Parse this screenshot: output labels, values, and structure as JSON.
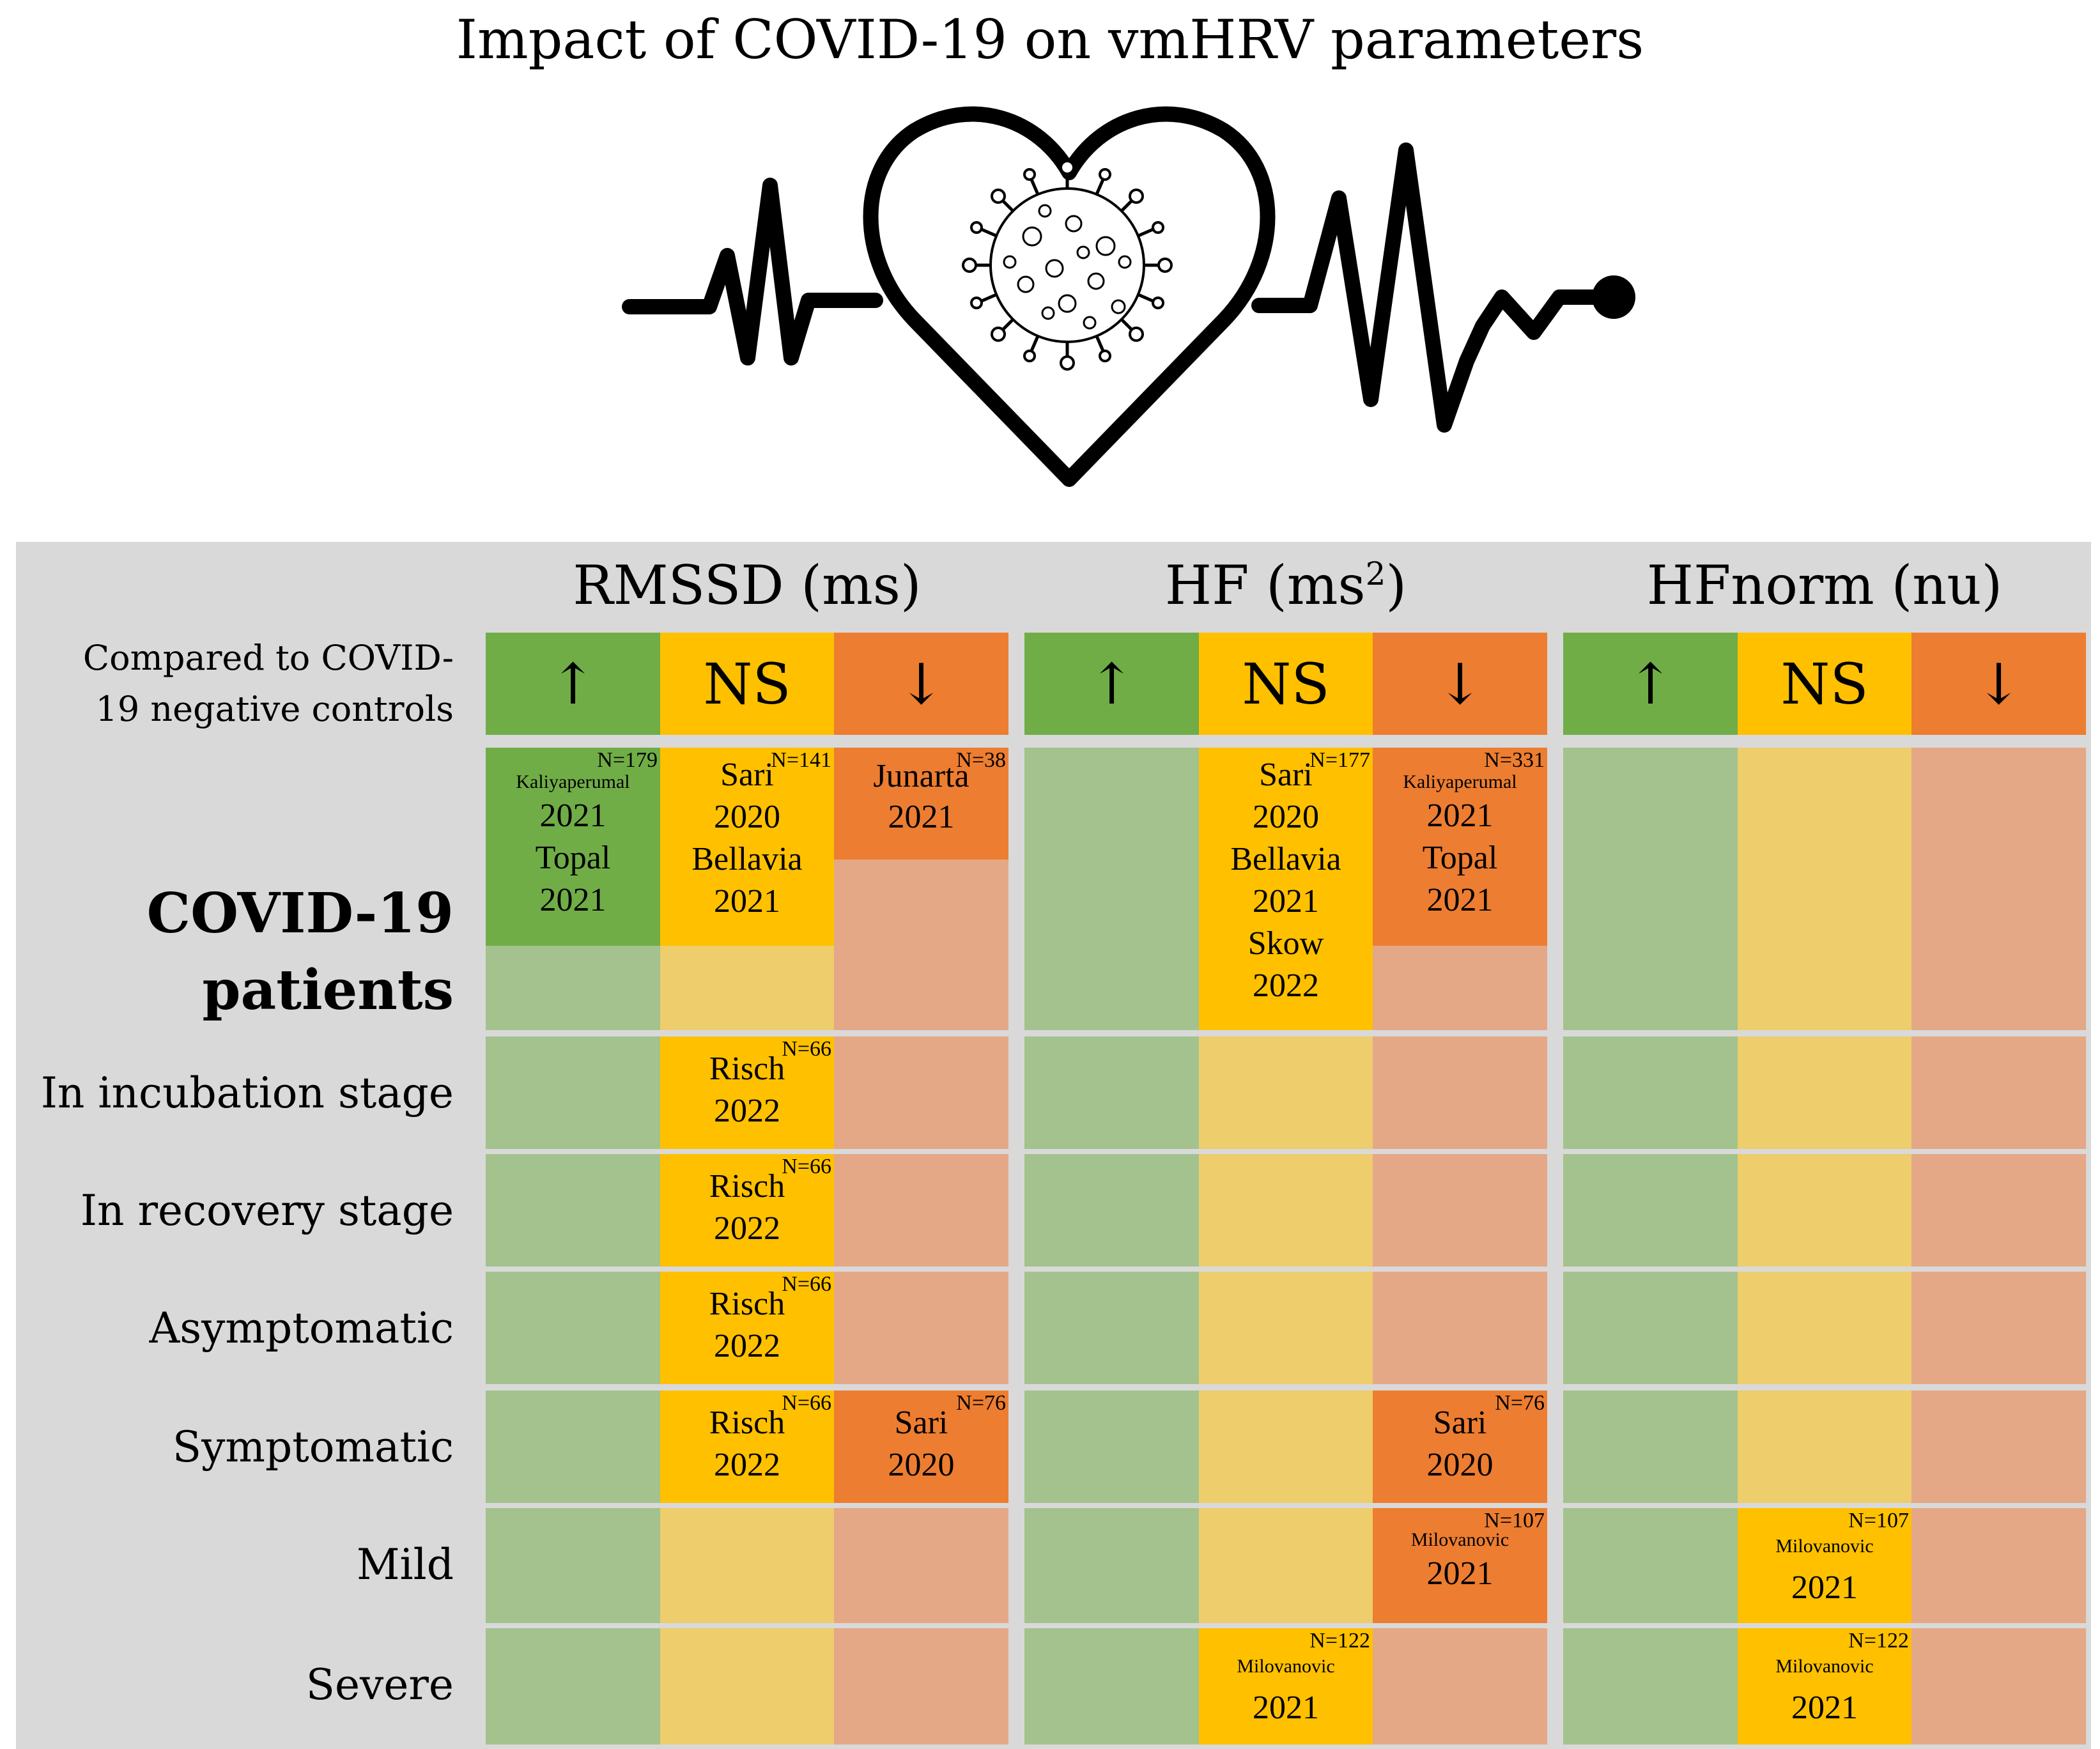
{
  "title": "Impact of COVID-19 on vmHRV parameters",
  "logo": {
    "icon": "heart-ecg-virus-icon"
  },
  "colors": {
    "increase": "#70ad47",
    "ns": "#ffc000",
    "decrease": "#ed7d31",
    "increase_muted": "#a3c28d",
    "ns_muted": "#edcd6c",
    "decrease_muted": "#e4a887",
    "panel": "#d9d9d9"
  },
  "compared_label": [
    "Compared to COVID-",
    "19 negative controls"
  ],
  "symbols": {
    "up": "↑",
    "ns": "NS",
    "down": "↓"
  },
  "parameters": [
    {
      "name": "RMSSD (ms)"
    },
    {
      "name": "HF (ms",
      "sup": "2",
      "suffix": ")"
    },
    {
      "name": "HFnorm (nu)"
    }
  ],
  "rows": [
    {
      "label": [
        "COVID-19",
        "patients"
      ]
    },
    {
      "label": "In incubation stage"
    },
    {
      "label": "In recovery stage"
    },
    {
      "label": "Asymptomatic"
    },
    {
      "label": "Symptomatic"
    },
    {
      "label": "Mild"
    },
    {
      "label": "Severe"
    }
  ],
  "entries": {
    "patients_rmssd_up": {
      "n": "N=179",
      "lines": [
        "Kaliyaperumal",
        "2021",
        "Topal",
        "2021"
      ]
    },
    "patients_rmssd_ns": {
      "n": "N=141",
      "lines": [
        "Sari",
        "2020",
        "Bellavia",
        "2021"
      ]
    },
    "patients_rmssd_down": {
      "n": "N=38",
      "lines": [
        "Junarta",
        "2021"
      ]
    },
    "patients_hf_ns": {
      "n": "N=177",
      "lines": [
        "Sari",
        "2020",
        "Bellavia",
        "2021",
        "Skow",
        "2022"
      ]
    },
    "patients_hf_down": {
      "n": "N=331",
      "lines": [
        "Kaliyaperumal",
        "2021",
        "Topal",
        "2021"
      ]
    },
    "incubation_rmssd_ns": {
      "n": "N=66",
      "lines": [
        "Risch",
        "2022"
      ]
    },
    "recovery_rmssd_ns": {
      "n": "N=66",
      "lines": [
        "Risch",
        "2022"
      ]
    },
    "asymptomatic_rmssd_ns": {
      "n": "N=66",
      "lines": [
        "Risch",
        "2022"
      ]
    },
    "symptomatic_rmssd_ns": {
      "n": "N=66",
      "lines": [
        "Risch",
        "2022"
      ]
    },
    "symptomatic_rmssd_down": {
      "n": "N=76",
      "lines": [
        "Sari",
        "2020"
      ]
    },
    "symptomatic_hf_down": {
      "n": "N=76",
      "lines": [
        "Sari",
        "2020"
      ]
    },
    "mild_hf_down": {
      "n": "N=107",
      "lines": [
        "Milovanovic",
        "2021"
      ]
    },
    "mild_hfnorm_ns": {
      "n": "N=107",
      "lines": [
        "Milovanovic",
        "2021"
      ]
    },
    "severe_hf_ns": {
      "n": "N=122",
      "lines": [
        "Milovanovic",
        "2021"
      ]
    },
    "severe_hfnorm_ns": {
      "n": "N=122",
      "lines": [
        "Milovanovic",
        "2021"
      ]
    }
  }
}
